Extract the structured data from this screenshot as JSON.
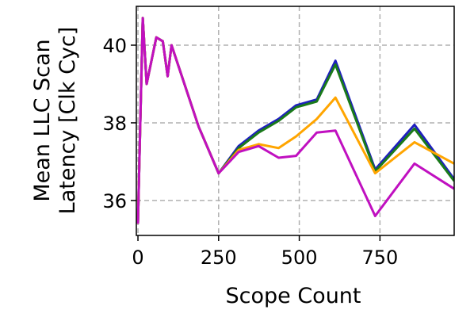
{
  "chart_data": {
    "type": "line",
    "xlabel": "Scope Count",
    "ylabel_lines": [
      "Mean LLC Scan",
      "Latency [Clk Cyc]"
    ],
    "x": [
      0,
      15,
      27,
      57,
      77,
      92,
      104,
      188,
      250,
      312,
      374,
      436,
      490,
      554,
      612,
      735,
      857,
      980
    ],
    "series": [
      {
        "color": "#1f1fbf",
        "values": [
          35.4,
          40.7,
          39.0,
          40.2,
          40.1,
          39.2,
          40.0,
          37.9,
          36.7,
          37.4,
          37.8,
          38.1,
          38.45,
          38.6,
          39.6,
          36.8,
          37.95,
          36.55
        ]
      },
      {
        "color": "#1a7a1a",
        "values": [
          35.4,
          40.7,
          39.0,
          40.2,
          40.1,
          39.2,
          40.0,
          37.9,
          36.7,
          37.35,
          37.75,
          38.05,
          38.4,
          38.55,
          39.5,
          36.75,
          37.85,
          36.5
        ]
      },
      {
        "color": "#ffa500",
        "values": [
          35.4,
          40.7,
          39.0,
          40.2,
          40.1,
          39.2,
          40.0,
          37.9,
          36.7,
          37.3,
          37.45,
          37.35,
          37.65,
          38.1,
          38.65,
          36.7,
          37.5,
          36.95
        ]
      },
      {
        "color": "#c010c0",
        "values": [
          35.4,
          40.7,
          39.0,
          40.2,
          40.1,
          39.2,
          40.0,
          37.9,
          36.7,
          37.25,
          37.4,
          37.1,
          37.15,
          37.75,
          37.8,
          35.6,
          36.95,
          36.3
        ]
      }
    ],
    "xlim": [
      -5,
      980
    ],
    "ylim": [
      35.1,
      41.0
    ],
    "xticks": [
      0,
      250,
      500,
      750
    ],
    "yticks": [
      36,
      38,
      40
    ],
    "grid": true
  }
}
